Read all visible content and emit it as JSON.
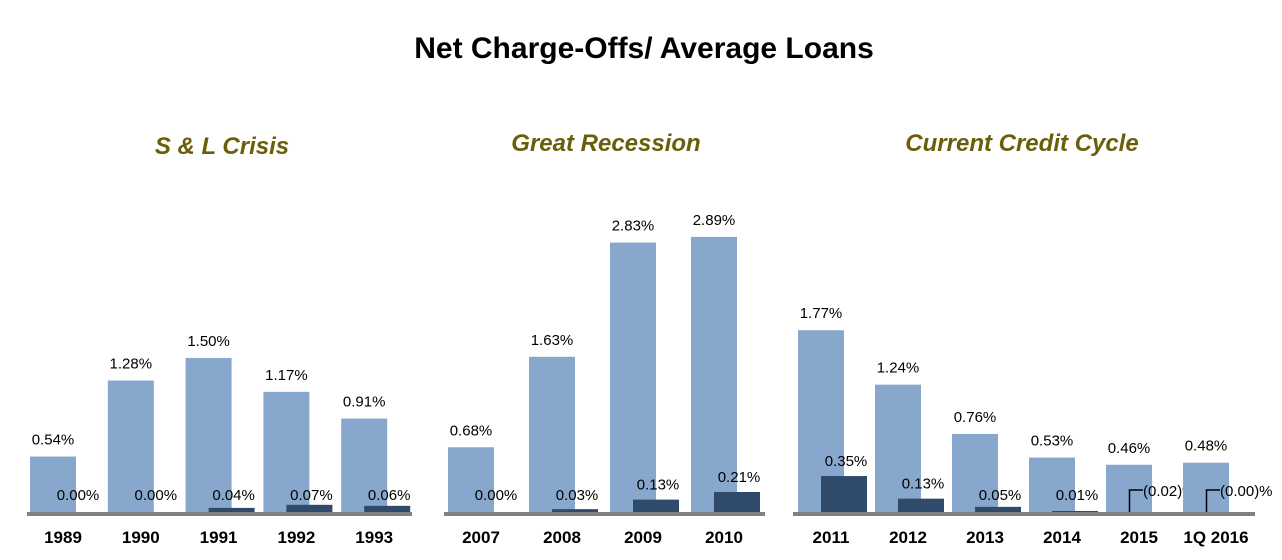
{
  "chart_data": {
    "type": "bar",
    "title": "Net Charge-Offs/ Average Loans",
    "colors": {
      "series_light": "#87a7cc",
      "series_dark": "#2f4a6b",
      "subtitle": "#6b5e0a",
      "axis": "#808080"
    },
    "panels": [
      {
        "subtitle": "S & L Crisis",
        "categories": [
          "1989",
          "1990",
          "1991",
          "1992",
          "1993"
        ],
        "series": [
          {
            "values": [
              0.54,
              1.28,
              1.5,
              1.17,
              0.91
            ],
            "labels": [
              "0.54%",
              "1.28%",
              "1.50%",
              "1.17%",
              "0.91%"
            ]
          },
          {
            "values": [
              0.0,
              0.0,
              0.04,
              0.07,
              0.06
            ],
            "labels": [
              "0.00%",
              "0.00%",
              "0.04%",
              "0.07%",
              "0.06%"
            ]
          }
        ]
      },
      {
        "subtitle": "Great Recession",
        "categories": [
          "2007",
          "2008",
          "2009",
          "2010"
        ],
        "series": [
          {
            "values": [
              0.68,
              1.63,
              2.83,
              2.89
            ],
            "labels": [
              "0.68%",
              "1.63%",
              "2.83%",
              "2.89%"
            ]
          },
          {
            "values": [
              0.0,
              0.03,
              0.13,
              0.21
            ],
            "labels": [
              "0.00%",
              "0.03%",
              "0.13%",
              "0.21%"
            ]
          }
        ]
      },
      {
        "subtitle": "Current Credit Cycle",
        "categories": [
          "2011",
          "2012",
          "2013",
          "2014",
          "2015",
          "1Q 2016"
        ],
        "series": [
          {
            "values": [
              1.77,
              1.24,
              0.76,
              0.53,
              0.46,
              0.48
            ],
            "labels": [
              "1.77%",
              "1.24%",
              "0.76%",
              "0.53%",
              "0.46%",
              "0.48%"
            ]
          },
          {
            "values": [
              0.35,
              0.13,
              0.05,
              0.01,
              -0.02,
              0.0
            ],
            "labels": [
              "0.35%",
              "0.13%",
              "0.05%",
              "0.01%",
              "(0.02)%",
              "(0.00)%"
            ]
          }
        ]
      }
    ]
  }
}
